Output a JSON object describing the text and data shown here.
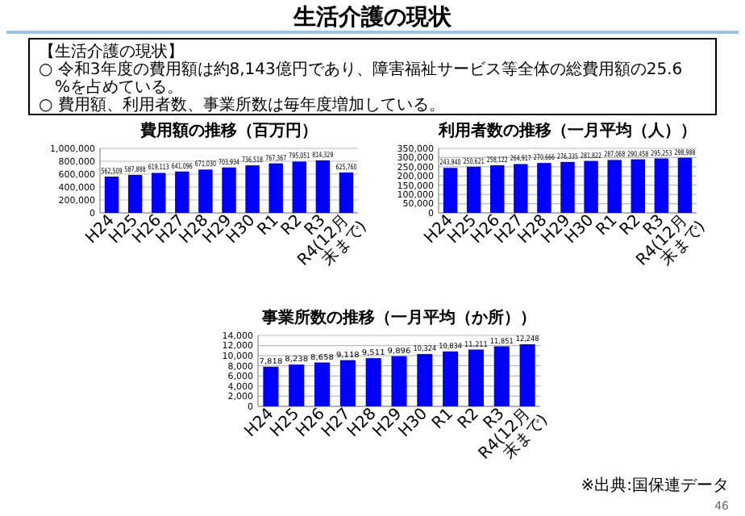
{
  "chart_data": [
    {
      "type": "other",
      "title": "生活介護の現状",
      "annotations": [
        "【生活介護の現状】",
        "○ 令和3年度の費用額は約8,143億円であり、障害福祉サービス等全体の総費用額の25.6%を占めている。",
        "○ 費用額、利用者数、事業所数は毎年度増加している。",
        "46"
      ]
    },
    {
      "type": "bar",
      "title": "費用額の推移（百万円）",
      "categories": [
        "H24",
        "H25",
        "H26",
        "H27",
        "H28",
        "H29",
        "H30",
        "R1",
        "R2",
        "R3",
        "R4(12月末まで)"
      ],
      "values": [
        562509,
        587888,
        619113,
        641096,
        671030,
        703934,
        736518,
        767367,
        795051,
        814329,
        625760
      ],
      "value_labels": [
        "562,509",
        "587,888",
        "619,113",
        "641,096",
        "671,030",
        "703,934",
        "736,518",
        "767,367",
        "795,051",
        "814,329",
        "625,760"
      ],
      "color": "#0000ff",
      "ylim": [
        0,
        1000000
      ],
      "yticks": [
        {
          "value": 0,
          "label": "0"
        },
        {
          "value": 200000,
          "label": "200,000"
        },
        {
          "value": 400000,
          "label": "400,000"
        },
        {
          "value": 600000,
          "label": "600,000"
        },
        {
          "value": 800000,
          "label": "800,000"
        },
        {
          "value": 1000000,
          "label": "1,000,000"
        }
      ],
      "grid": "y"
    },
    {
      "type": "bar",
      "title": "利用者数の推移（一月平均（人））",
      "categories": [
        "H24",
        "H25",
        "H26",
        "H27",
        "H28",
        "H29",
        "H30",
        "R1",
        "R2",
        "R3",
        "R4(12月末まで)"
      ],
      "values": [
        243940,
        250621,
        258122,
        264917,
        270666,
        276335,
        281822,
        287068,
        290458,
        295253,
        298988
      ],
      "value_labels": [
        "243,940",
        "250,621",
        "258,122",
        "264,917",
        "270,666",
        "276,335",
        "281,822",
        "287,068",
        "290,458",
        "295,253",
        "298,988"
      ],
      "color": "#0000ff",
      "ylim": [
        0,
        350000
      ],
      "yticks": [
        {
          "value": 0,
          "label": "0"
        },
        {
          "value": 50000,
          "label": "50,000"
        },
        {
          "value": 100000,
          "label": "100,000"
        },
        {
          "value": 150000,
          "label": "150,000"
        },
        {
          "value": 200000,
          "label": "200,000"
        },
        {
          "value": 250000,
          "label": "250,000"
        },
        {
          "value": 300000,
          "label": "300,000"
        },
        {
          "value": 350000,
          "label": "350,000"
        }
      ],
      "grid": "y"
    },
    {
      "type": "bar",
      "title": "事業所数の推移（一月平均（か所））",
      "categories": [
        "H24",
        "H25",
        "H26",
        "H27",
        "H28",
        "H29",
        "H30",
        "R1",
        "R2",
        "R3",
        "R4(12月末まで)"
      ],
      "values": [
        7818,
        8238,
        8658,
        9118,
        9511,
        9896,
        10324,
        10834,
        11211,
        11851,
        12248
      ],
      "value_labels": [
        "7,818",
        "8,238",
        "8,658",
        "9,118",
        "9,511",
        "9,896",
        "10,324",
        "10,834",
        "11,211",
        "11,851",
        "12,248"
      ],
      "color": "#0000ff",
      "ylim": [
        0,
        14000
      ],
      "yticks": [
        {
          "value": 0,
          "label": "0"
        },
        {
          "value": 2000,
          "label": "2,000"
        },
        {
          "value": 4000,
          "label": "4,000"
        },
        {
          "value": 6000,
          "label": "6,000"
        },
        {
          "value": 8000,
          "label": "8,000"
        },
        {
          "value": 10000,
          "label": "10,000"
        },
        {
          "value": 12000,
          "label": "12,000"
        },
        {
          "value": 14000,
          "label": "14,000"
        }
      ],
      "grid": "y",
      "annotations": [
        "※出典:国保連データ"
      ]
    }
  ]
}
